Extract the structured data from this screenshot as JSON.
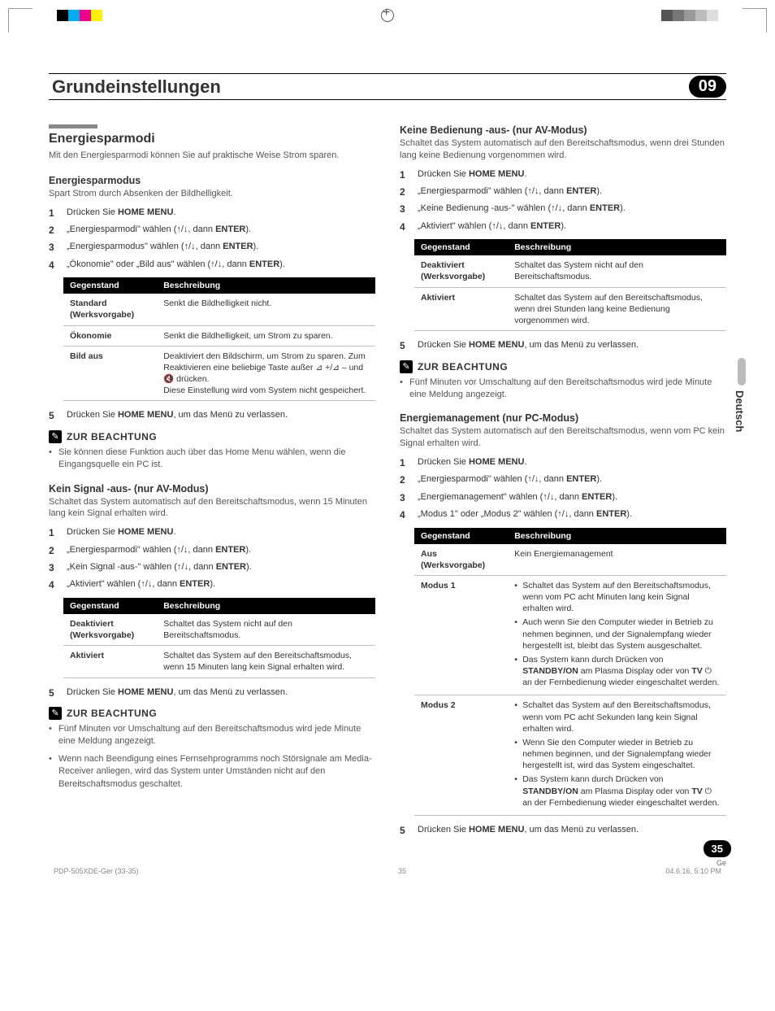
{
  "header": {
    "title": "Grundeinstellungen",
    "chapter": "09"
  },
  "side_tab": "Deutsch",
  "page_badge": "35",
  "page_sub": "Ge",
  "footer": {
    "left": "PDP-505XDE-Ger (33-35)",
    "mid": "35",
    "right": "04.6.16, 5:10 PM"
  },
  "reg_colors": [
    "#000000",
    "#00aeef",
    "#ec008c",
    "#fff200"
  ],
  "grey_scale": [
    "#555555",
    "#777777",
    "#999999",
    "#bbbbbb",
    "#dddddd"
  ],
  "left": {
    "section_title": "Energiesparmodi",
    "section_intro": "Mit den Energiesparmodi können Sie auf praktische Weise Strom sparen.",
    "s1": {
      "title": "Energiesparmodus",
      "desc": "Spart Strom durch Absenken der Bildhelligkeit.",
      "steps": [
        {
          "pre": "Drücken Sie ",
          "b1": "HOME MENU",
          "post": "."
        },
        {
          "pre": "„Energiesparmodi\" wählen (",
          "arrows": "↑/↓",
          "mid": ", dann ",
          "b1": "ENTER",
          "post": ")."
        },
        {
          "pre": "„Energiesparmodus\" wählen (",
          "arrows": "↑/↓",
          "mid": ", dann ",
          "b1": "ENTER",
          "post": ")."
        },
        {
          "pre": "„Ökonomie\" oder „Bild aus\" wählen  (",
          "arrows": "↑/↓",
          "mid": ", dann ",
          "b1": "ENTER",
          "post": ")."
        }
      ],
      "table_h1": "Gegenstand",
      "table_h2": "Beschreibung",
      "rows": [
        {
          "g": "Standard (Werksvorgabe)",
          "b": "Senkt die Bildhelligkeit nicht."
        },
        {
          "g": "Ökonomie",
          "b": "Senkt die Bildhelligkeit, um Strom zu sparen."
        },
        {
          "g": "Bild aus",
          "b": "Deaktiviert den Bildschirm, um Strom zu sparen. Zum Reaktivieren eine beliebige Taste außer ⊿ +/⊿ – und 🔇 drücken.\nDiese Einstellung wird vom System nicht gespeichert."
        }
      ],
      "step5": {
        "pre": "Drücken Sie ",
        "b1": "HOME MENU",
        "post": ", um das Menü zu verlassen."
      },
      "note_title": "ZUR BEACHTUNG",
      "notes": [
        "Sie können diese Funktion auch über das Home Menu wählen, wenn die Eingangsquelle ein PC ist."
      ]
    },
    "s2": {
      "title": "Kein Signal -aus- (nur AV-Modus)",
      "desc": "Schaltet das System automatisch auf den Bereitschaftsmodus, wenn 15 Minuten lang kein Signal erhalten wird.",
      "steps": [
        {
          "pre": "Drücken Sie ",
          "b1": "HOME MENU",
          "post": "."
        },
        {
          "pre": "„Energiesparmodi\" wählen (",
          "arrows": "↑/↓",
          "mid": ", dann ",
          "b1": "ENTER",
          "post": ")."
        },
        {
          "pre": "„Kein Signal -aus-\" wählen (",
          "arrows": "↑/↓",
          "mid": ", dann ",
          "b1": "ENTER",
          "post": ")."
        },
        {
          "pre": "„Aktiviert\" wählen (",
          "arrows": "↑/↓",
          "mid": ", dann ",
          "b1": "ENTER",
          "post": ")."
        }
      ],
      "table_h1": "Gegenstand",
      "table_h2": "Beschreibung",
      "rows": [
        {
          "g": "Deaktiviert (Werksvorgabe)",
          "b": "Schaltet das System nicht auf den Bereitschaftsmodus."
        },
        {
          "g": "Aktiviert",
          "b": "Schaltet das System auf den Bereitschaftsmodus, wenn 15 Minuten lang kein Signal erhalten wird."
        }
      ],
      "step5": {
        "pre": "Drücken Sie ",
        "b1": "HOME MENU",
        "post": ", um das Menü zu verlassen."
      },
      "note_title": "ZUR BEACHTUNG",
      "notes": [
        "Fünf Minuten vor Umschaltung auf den Bereitschaftsmodus wird jede Minute eine Meldung angezeigt.",
        "Wenn nach Beendigung eines Fernsehprogramms noch Störsignale am Media-Receiver anliegen, wird das System unter Umständen nicht auf den Bereitschaftsmodus geschaltet."
      ]
    }
  },
  "right": {
    "s1": {
      "title": "Keine Bedienung -aus- (nur AV-Modus)",
      "desc": "Schaltet das System automatisch auf den Bereitschaftsmodus, wenn drei Stunden lang keine Bedienung vorgenommen wird.",
      "steps": [
        {
          "pre": "Drücken Sie ",
          "b1": "HOME MENU",
          "post": "."
        },
        {
          "pre": "„Energiesparmodi\" wählen (",
          "arrows": "↑/↓",
          "mid": ", dann ",
          "b1": "ENTER",
          "post": ")."
        },
        {
          "pre": "„Keine Bedienung -aus-\" wählen (",
          "arrows": "↑/↓",
          "mid": ", dann ",
          "b1": "ENTER",
          "post": ")."
        },
        {
          "pre": "„Aktiviert\" wählen (",
          "arrows": "↑/↓",
          "mid": ", dann ",
          "b1": "ENTER",
          "post": ")."
        }
      ],
      "table_h1": "Gegenstand",
      "table_h2": "Beschreibung",
      "rows": [
        {
          "g": "Deaktiviert (Werksvorgabe)",
          "b": "Schaltet das System nicht auf den Bereitschaftsmodus."
        },
        {
          "g": "Aktiviert",
          "b": "Schaltet das System auf den Bereitschaftsmodus, wenn drei Stunden lang keine Bedienung vorgenommen wird."
        }
      ],
      "step5": {
        "pre": "Drücken Sie ",
        "b1": "HOME MENU",
        "post": ", um das Menü zu verlassen."
      },
      "note_title": "ZUR BEACHTUNG",
      "notes": [
        "Fünf Minuten vor Umschaltung auf den Bereitschaftsmodus wird jede Minute eine Meldung angezeigt."
      ]
    },
    "s2": {
      "title": "Energiemanagement (nur PC-Modus)",
      "desc": "Schaltet das System automatisch auf den Bereitschaftsmodus, wenn vom PC kein Signal erhalten wird.",
      "steps": [
        {
          "pre": "Drücken Sie ",
          "b1": "HOME MENU",
          "post": "."
        },
        {
          "pre": "„Energiesparmodi\" wählen (",
          "arrows": "↑/↓",
          "mid": ", dann ",
          "b1": "ENTER",
          "post": ")."
        },
        {
          "pre": "„Energiemanagement\" wählen (",
          "arrows": "↑/↓",
          "mid": ", dann ",
          "b1": "ENTER",
          "post": ")."
        },
        {
          "pre": "„Modus 1\" oder „Modus 2\" wählen (",
          "arrows": "↑/↓",
          "mid": ", dann ",
          "b1": "ENTER",
          "post": ")."
        }
      ],
      "table_h1": "Gegenstand",
      "table_h2": "Beschreibung",
      "rows": [
        {
          "g": "Aus (Werksvorgabe)",
          "b": "Kein Energiemanagement"
        },
        {
          "g": "Modus 1",
          "bullets": [
            "Schaltet das System auf den Bereitschaftsmodus, wenn vom PC acht Minuten lang kein Signal erhalten wird.",
            "Auch wenn Sie den Computer wieder in Betrieb zu nehmen beginnen, und der Signalempfang wieder hergestellt ist, bleibt das System ausgeschaltet.",
            "Das System kann durch Drücken von STANDBY/ON am Plasma Display oder von TV ⏻ an der Fernbedienung wieder eingeschaltet werden."
          ]
        },
        {
          "g": "Modus 2",
          "bullets": [
            "Schaltet das System auf den Bereitschaftsmodus, wenn vom PC acht Sekunden lang kein Signal erhalten wird.",
            "Wenn Sie den Computer wieder in Betrieb zu nehmen beginnen, und der Signalempfang wieder hergestellt ist, wird das System eingeschaltet.",
            "Das System kann durch Drücken von STANDBY/ON am Plasma Display oder von TV ⏻ an der Fernbedienung wieder eingeschaltet werden."
          ]
        }
      ],
      "step5": {
        "pre": "Drücken Sie ",
        "b1": "HOME MENU",
        "post": ", um das Menü zu verlassen."
      }
    }
  }
}
